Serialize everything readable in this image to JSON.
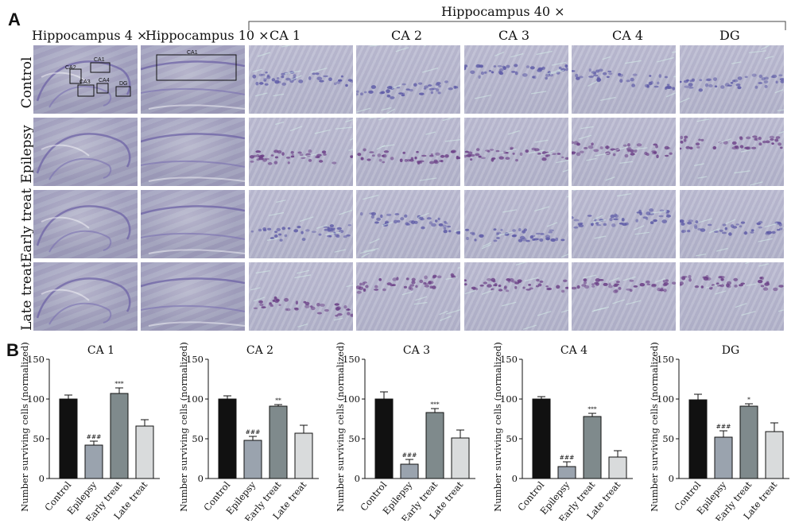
{
  "panels": {
    "a_label": "A",
    "b_label": "B"
  },
  "headers": {
    "group_40x": "Hippocampus 40 ×",
    "col_4x": "Hippocampus 4 ×",
    "col_10x": "Hippocampus 10 ×",
    "regions": [
      "CA 1",
      "CA 2",
      "CA 3",
      "CA 4",
      "DG"
    ]
  },
  "rows": [
    "Control",
    "Epilepsy",
    "Early treat",
    "Late treat"
  ],
  "inset_labels": {
    "overview": [
      "CA1",
      "CA2",
      "CA3",
      "CA4",
      "DG"
    ],
    "zoom10": "CA1"
  },
  "colors": {
    "control": "#111111",
    "epilepsy": "#9aa3ae",
    "early_treat": "#7f8a8c",
    "late_treat": "#d9dbdc"
  },
  "chart_data": [
    {
      "type": "bar",
      "title": "CA 1",
      "ylabel": "Number surviving cells (normalized)",
      "categories": [
        "Control",
        "Epilepsy",
        "Early treat",
        "Late treat"
      ],
      "values": [
        100,
        42,
        107,
        66
      ],
      "errors": [
        5,
        5,
        7,
        8
      ],
      "significance": [
        "",
        "###",
        "***",
        ""
      ],
      "ylim": [
        0,
        150
      ],
      "yticks": [
        0,
        50,
        100,
        150
      ]
    },
    {
      "type": "bar",
      "title": "CA 2",
      "ylabel": "Number surviving cells (normalized)",
      "categories": [
        "Control",
        "Epilepsy",
        "Early treat",
        "Late treat"
      ],
      "values": [
        100,
        48,
        91,
        57
      ],
      "errors": [
        4,
        5,
        2,
        10
      ],
      "significance": [
        "",
        "###",
        "**",
        ""
      ],
      "ylim": [
        0,
        150
      ],
      "yticks": [
        0,
        50,
        100,
        150
      ]
    },
    {
      "type": "bar",
      "title": "CA 3",
      "ylabel": "Number surviving cells (normalized)",
      "categories": [
        "Control",
        "Epilepsy",
        "Early treat",
        "Late treat"
      ],
      "values": [
        100,
        18,
        83,
        51
      ],
      "errors": [
        9,
        6,
        5,
        10
      ],
      "significance": [
        "",
        "###",
        "***",
        ""
      ],
      "ylim": [
        0,
        150
      ],
      "yticks": [
        0,
        50,
        100,
        150
      ]
    },
    {
      "type": "bar",
      "title": "CA 4",
      "ylabel": "Number surviving cells (normalized)",
      "categories": [
        "Control",
        "Epilepsy",
        "Early treat",
        "Late treat"
      ],
      "values": [
        100,
        15,
        78,
        27
      ],
      "errors": [
        3,
        6,
        4,
        8
      ],
      "significance": [
        "",
        "###",
        "***",
        ""
      ],
      "ylim": [
        0,
        150
      ],
      "yticks": [
        0,
        50,
        100,
        150
      ]
    },
    {
      "type": "bar",
      "title": "DG",
      "ylabel": "Number surviving cells (normalized)",
      "categories": [
        "Control",
        "Epilepsy",
        "Early treat",
        "Late treat"
      ],
      "values": [
        99,
        52,
        91,
        59
      ],
      "errors": [
        7,
        8,
        3,
        11
      ],
      "significance": [
        "",
        "###",
        "*",
        ""
      ],
      "ylim": [
        0,
        150
      ],
      "yticks": [
        0,
        50,
        100,
        150
      ]
    }
  ]
}
